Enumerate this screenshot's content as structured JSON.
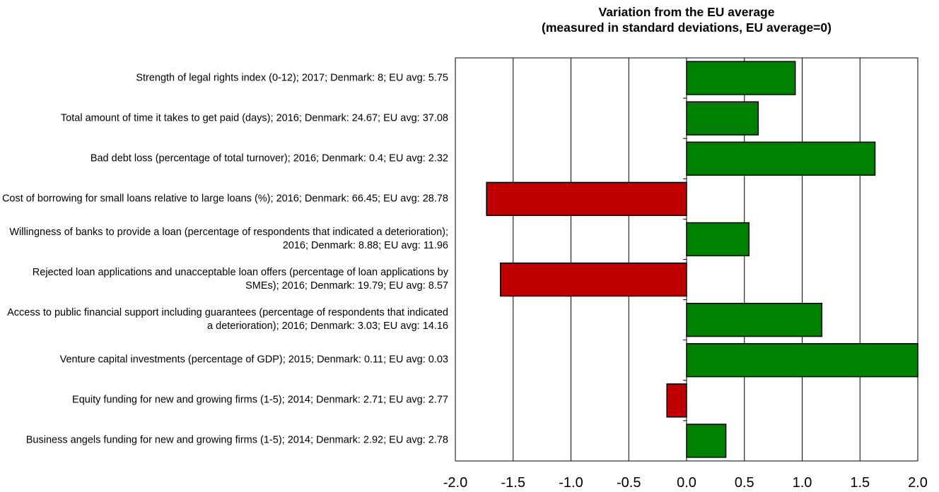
{
  "chart_data": {
    "type": "hbar",
    "title": "Variation from the EU average",
    "subtitle": "(measured in standard deviations, EU average=0)",
    "categories": [
      "Strength of legal rights index (0-12); 2017; Denmark: 8; EU avg: 5.75",
      "Total amount of time it takes to get paid (days); 2016; Denmark: 24.67; EU avg: 37.08",
      "Bad debt loss (percentage of total turnover); 2016; Denmark: 0.4; EU avg: 2.32",
      "Cost of borrowing for small loans relative to large loans (%); 2016; Denmark: 66.45; EU avg: 28.78",
      "Willingness of banks to provide a loan (percentage of respondents that indicated a deterioration); 2016; Denmark: 8.88; EU avg: 11.96",
      "Rejected loan applications and unacceptable loan offers (percentage of loan applications by SMEs); 2016; Denmark: 19.79; EU avg: 8.57",
      "Access to public financial support including guarantees (percentage of respondents that indicated a deterioration); 2016; Denmark: 3.03; EU avg: 14.16",
      "Venture capital investments (percentage of GDP); 2015; Denmark: 0.11; EU avg: 0.03",
      "Equity funding for new and growing firms (1-5); 2014; Denmark: 2.71; EU avg: 2.77",
      "Business angels funding for new and growing firms (1-5); 2014; Denmark: 2.92; EU avg: 2.78"
    ],
    "values": [
      0.94,
      0.62,
      1.63,
      -1.73,
      0.54,
      -1.61,
      1.17,
      2.0,
      -0.17,
      0.34
    ],
    "colors": [
      "#008000",
      "#008000",
      "#008000",
      "#c00000",
      "#008000",
      "#c00000",
      "#008000",
      "#008000",
      "#c00000",
      "#008000"
    ],
    "xlim": [
      -2.0,
      2.0
    ],
    "xticks": [
      {
        "value": -2,
        "label": "-2.0"
      },
      -1.5,
      {
        "value": -1,
        "label": "-1.0"
      },
      -0.5,
      {
        "value": 0,
        "label": "0.0"
      },
      0.5,
      {
        "value": 1,
        "label": "1.0"
      },
      1.5,
      {
        "value": 2,
        "label": "2.0"
      }
    ],
    "grid": true
  }
}
